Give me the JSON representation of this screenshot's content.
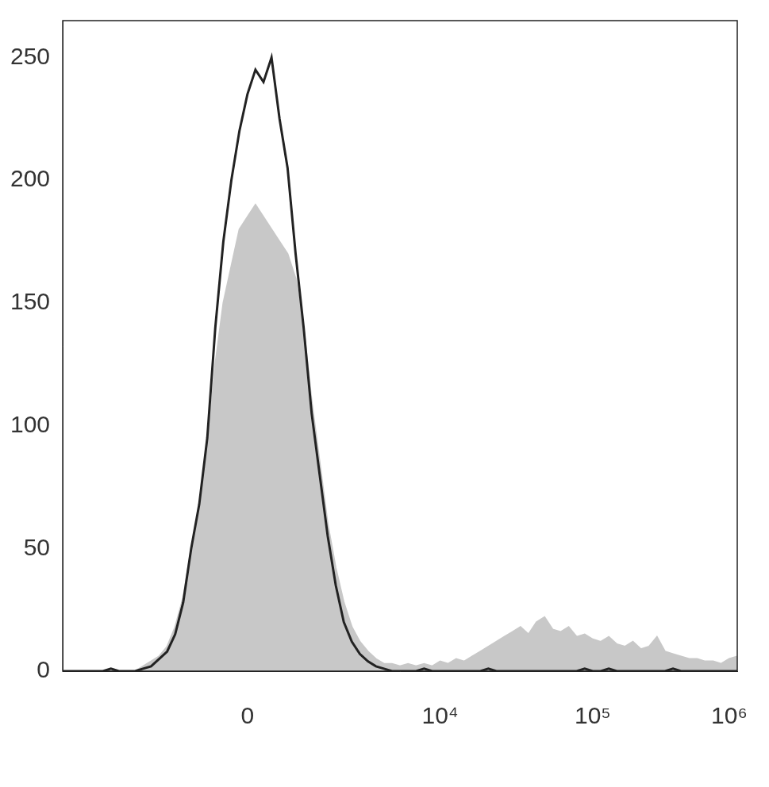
{
  "chart_data": {
    "type": "line",
    "categories": [
      null,
      null,
      null,
      null,
      null,
      null,
      null,
      null,
      null,
      null,
      null,
      null,
      null,
      null,
      null,
      null,
      null,
      null,
      null,
      null,
      null,
      null,
      null,
      "0",
      null,
      null,
      null,
      null,
      null,
      null,
      null,
      null,
      null,
      null,
      null,
      null,
      null,
      null,
      null,
      null,
      null,
      null,
      null,
      null,
      null,
      null,
      null,
      "10⁴",
      null,
      null,
      null,
      null,
      null,
      null,
      null,
      null,
      null,
      null,
      null,
      null,
      null,
      null,
      null,
      null,
      null,
      null,
      "10⁵",
      null,
      null,
      null,
      null,
      null,
      null,
      null,
      null,
      null,
      null,
      null,
      null,
      null,
      null,
      null,
      null,
      "10⁶",
      null
    ],
    "series": [
      {
        "type": "line",
        "color": "#222222",
        "values": [
          0,
          0,
          0,
          0,
          0,
          0,
          1,
          0,
          0,
          0,
          1,
          2,
          5,
          8,
          15,
          28,
          50,
          68,
          95,
          140,
          175,
          200,
          220,
          235,
          245,
          240,
          250,
          225,
          205,
          170,
          140,
          105,
          80,
          55,
          35,
          20,
          12,
          7,
          4,
          2,
          1,
          0,
          0,
          0,
          0,
          1,
          0,
          0,
          0,
          0,
          0,
          0,
          0,
          1,
          0,
          0,
          0,
          0,
          0,
          0,
          0,
          0,
          0,
          0,
          0,
          1,
          0,
          0,
          1,
          0,
          0,
          0,
          0,
          0,
          0,
          0,
          1,
          0,
          0,
          0,
          0,
          0,
          0,
          0,
          0
        ]
      },
      {
        "type": "area",
        "color": "#c8c8c8",
        "values": [
          0,
          0,
          0,
          0,
          0,
          0,
          0,
          0,
          0,
          0,
          2,
          4,
          6,
          10,
          18,
          30,
          50,
          65,
          90,
          125,
          150,
          165,
          180,
          185,
          190,
          185,
          180,
          175,
          170,
          160,
          140,
          110,
          85,
          60,
          42,
          28,
          18,
          12,
          8,
          5,
          3,
          3,
          2,
          3,
          2,
          3,
          2,
          4,
          3,
          5,
          4,
          6,
          8,
          10,
          12,
          14,
          16,
          18,
          15,
          20,
          22,
          17,
          16,
          18,
          14,
          15,
          13,
          12,
          14,
          11,
          10,
          12,
          9,
          10,
          14,
          8,
          7,
          6,
          5,
          5,
          4,
          4,
          3,
          5,
          6
        ]
      }
    ],
    "ylim": [
      0,
      265
    ],
    "yticks": [
      0,
      50,
      100,
      150,
      200,
      250
    ],
    "grid": false
  }
}
